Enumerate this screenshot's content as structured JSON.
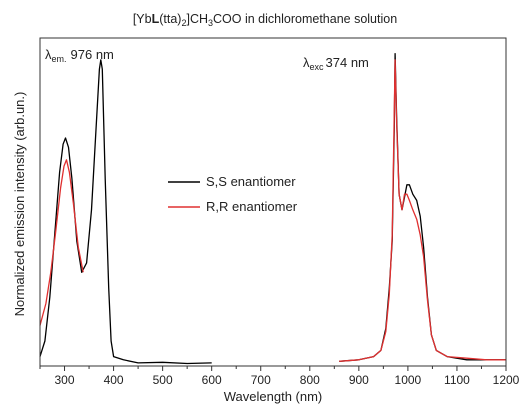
{
  "chart_data": {
    "type": "line",
    "title_parts": {
      "a": "[Yb",
      "b": "L",
      "c": "(tta)",
      "d": "2",
      "e": "]CH",
      "f": "3",
      "g": "COO in dichloromethane solution"
    },
    "xlabel": "Wavelength (nm)",
    "ylabel": "Normalized emission intensity (arb.un.)",
    "xlim": [
      250,
      1200
    ],
    "ylim": [
      0,
      1.05
    ],
    "x_ticks": [
      300,
      400,
      500,
      600,
      700,
      800,
      900,
      1000,
      1100,
      1200
    ],
    "y_ticks_shown": false,
    "grid": false,
    "legend_position": "center",
    "annotations": {
      "em": {
        "lambda": "λ",
        "sub": "em.",
        "value": "976 nm"
      },
      "exc": {
        "lambda": "λ",
        "sub": "exc",
        "value": "374 nm"
      }
    },
    "series": [
      {
        "name": "S,S enantiomer",
        "color": "#000000",
        "segments": [
          [
            [
              250,
              0.03
            ],
            [
              260,
              0.08
            ],
            [
              270,
              0.22
            ],
            [
              280,
              0.42
            ],
            [
              290,
              0.62
            ],
            [
              297,
              0.71
            ],
            [
              302,
              0.73
            ],
            [
              308,
              0.7
            ],
            [
              315,
              0.6
            ],
            [
              325,
              0.4
            ],
            [
              335,
              0.3
            ],
            [
              345,
              0.33
            ],
            [
              355,
              0.5
            ],
            [
              365,
              0.78
            ],
            [
              371,
              0.95
            ],
            [
              374,
              0.98
            ],
            [
              377,
              0.95
            ],
            [
              383,
              0.6
            ],
            [
              390,
              0.25
            ],
            [
              395,
              0.08
            ],
            [
              400,
              0.03
            ],
            [
              420,
              0.02
            ],
            [
              450,
              0.01
            ],
            [
              500,
              0.012
            ],
            [
              550,
              0.008
            ],
            [
              600,
              0.01
            ]
          ],
          [
            [
              860,
              0.015
            ],
            [
              900,
              0.02
            ],
            [
              930,
              0.03
            ],
            [
              945,
              0.05
            ],
            [
              955,
              0.12
            ],
            [
              962,
              0.25
            ],
            [
              968,
              0.4
            ],
            [
              972,
              0.75
            ],
            [
              974,
              1.0
            ],
            [
              977,
              0.8
            ],
            [
              982,
              0.55
            ],
            [
              988,
              0.5
            ],
            [
              993,
              0.54
            ],
            [
              998,
              0.58
            ],
            [
              1003,
              0.58
            ],
            [
              1010,
              0.55
            ],
            [
              1018,
              0.53
            ],
            [
              1025,
              0.48
            ],
            [
              1032,
              0.38
            ],
            [
              1040,
              0.22
            ],
            [
              1048,
              0.1
            ],
            [
              1058,
              0.05
            ],
            [
              1080,
              0.03
            ],
            [
              1120,
              0.02
            ],
            [
              1160,
              0.02
            ],
            [
              1200,
              0.02
            ]
          ]
        ]
      },
      {
        "name": "R,R enantiomer",
        "color": "#e03030",
        "segments": [
          [
            [
              250,
              0.13
            ],
            [
              262,
              0.2
            ],
            [
              272,
              0.3
            ],
            [
              282,
              0.43
            ],
            [
              292,
              0.57
            ],
            [
              299,
              0.64
            ],
            [
              304,
              0.66
            ],
            [
              310,
              0.62
            ],
            [
              318,
              0.52
            ],
            [
              328,
              0.38
            ],
            [
              338,
              0.3
            ]
          ],
          [
            [
              860,
              0.015
            ],
            [
              900,
              0.02
            ],
            [
              930,
              0.03
            ],
            [
              945,
              0.05
            ],
            [
              955,
              0.11
            ],
            [
              962,
              0.23
            ],
            [
              968,
              0.42
            ],
            [
              972,
              0.8
            ],
            [
              974,
              0.98
            ],
            [
              977,
              0.78
            ],
            [
              982,
              0.55
            ],
            [
              988,
              0.5
            ],
            [
              993,
              0.55
            ],
            [
              998,
              0.55
            ],
            [
              1003,
              0.53
            ],
            [
              1010,
              0.5
            ],
            [
              1018,
              0.47
            ],
            [
              1025,
              0.42
            ],
            [
              1032,
              0.35
            ],
            [
              1040,
              0.21
            ],
            [
              1048,
              0.1
            ],
            [
              1058,
              0.05
            ],
            [
              1080,
              0.03
            ],
            [
              1120,
              0.025
            ],
            [
              1160,
              0.02
            ],
            [
              1200,
              0.02
            ]
          ]
        ]
      }
    ]
  }
}
